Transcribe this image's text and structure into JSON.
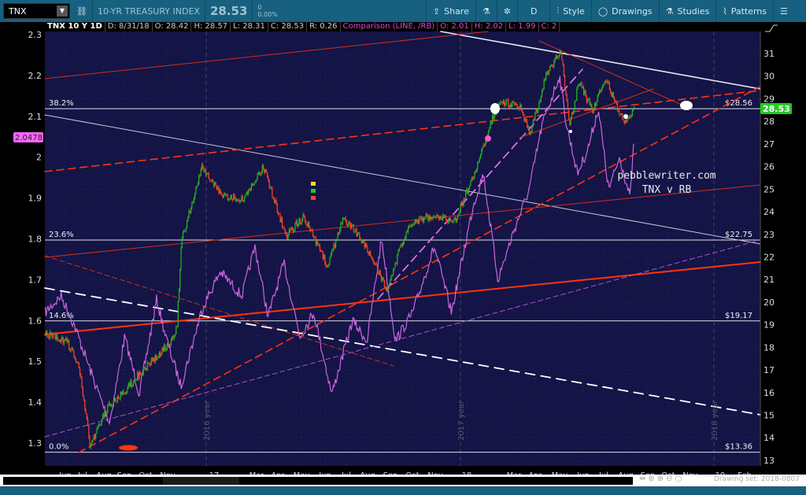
{
  "toolbar": {
    "symbol": "TNX",
    "description": "10-YR TREASURY INDEX",
    "last": "28.53",
    "change": "0",
    "change_pct": "0.00%",
    "share": "Share",
    "aggregation": "D",
    "style": "Style",
    "drawings": "Drawings",
    "studies": "Studies",
    "patterns": "Patterns",
    "icons": [
      "flask-icon",
      "gear-icon",
      "menu-icon"
    ]
  },
  "legend": {
    "title": "TNX 10 Y 1D",
    "date": "D: 8/31/18",
    "open": "O: 28.42",
    "high": "H: 28.57",
    "low": "L: 28.31",
    "close": "C: 28.53",
    "range": "R: 0.26",
    "comparison": "Comparison (LINE, /RB)",
    "c_open": "O: 2.01",
    "c_high": "H: 2.02",
    "c_low": "L: 1.99",
    "c_close": "C: 2"
  },
  "colors": {
    "background": "#141446",
    "up": "#22bb22",
    "down": "#ff4422",
    "comparison": "#cc66dd",
    "trend_red": "#ff3311",
    "price_badge": "#22cc22",
    "comparison_badge": "#ff66ff"
  },
  "chart_data": {
    "type": "candlestick+line",
    "xlim": [
      "2016-05-02",
      "2019-02-28"
    ],
    "x_ticks": [
      "Jun",
      "Jul",
      "Aug",
      "Sep",
      "Oct",
      "Nov",
      "17",
      "Mar",
      "Apr",
      "May",
      "Jun",
      "Jul",
      "Aug",
      "Sep",
      "Oct",
      "Nov",
      "18",
      "Mar",
      "Apr",
      "May",
      "Jun",
      "Jul",
      "Aug",
      "Sep",
      "Oct",
      "Nov",
      "19",
      "Feb"
    ],
    "year_labels": [
      "2016 year",
      "2017 year",
      "2018 year"
    ],
    "right_axis": {
      "ylim": [
        12.8,
        32
      ],
      "ticks": [
        "31",
        "30",
        "29",
        "28",
        "27",
        "26",
        "25",
        "24",
        "23",
        "22",
        "21",
        "20",
        "19",
        "18",
        "17",
        "16",
        "15",
        "14",
        "13"
      ],
      "last": "28.53"
    },
    "left_axis": {
      "ylim": [
        1.27,
        2.31
      ],
      "ticks": [
        "2.3",
        "2.2",
        "2.1",
        "2",
        "1.9",
        "1.8",
        "1.7",
        "1.6",
        "1.5",
        "1.4",
        "1.3"
      ],
      "last": "2.0478"
    },
    "tnx": [
      [
        "2016-05-02",
        18.6
      ],
      [
        "2016-06-01",
        18.3
      ],
      [
        "2016-06-20",
        17.2
      ],
      [
        "2016-07-06",
        13.6
      ],
      [
        "2016-08-01",
        15.4
      ],
      [
        "2016-08-20",
        15.9
      ],
      [
        "2016-09-15",
        16.8
      ],
      [
        "2016-10-10",
        17.6
      ],
      [
        "2016-10-31",
        18.3
      ],
      [
        "2016-11-08",
        18.8
      ],
      [
        "2016-11-15",
        22.7
      ],
      [
        "2016-12-15",
        26.0
      ],
      [
        "2017-01-10",
        24.8
      ],
      [
        "2017-02-10",
        24.5
      ],
      [
        "2017-03-13",
        26.0
      ],
      [
        "2017-04-15",
        22.9
      ],
      [
        "2017-05-10",
        23.8
      ],
      [
        "2017-06-14",
        21.6
      ],
      [
        "2017-07-07",
        23.8
      ],
      [
        "2017-08-10",
        22.4
      ],
      [
        "2017-09-07",
        20.6
      ],
      [
        "2017-10-10",
        23.5
      ],
      [
        "2017-11-10",
        23.8
      ],
      [
        "2017-12-15",
        23.6
      ],
      [
        "2018-01-10",
        25.5
      ],
      [
        "2018-02-05",
        28.0
      ],
      [
        "2018-02-20",
        28.9
      ],
      [
        "2018-03-20",
        28.6
      ],
      [
        "2018-04-02",
        27.4
      ],
      [
        "2018-04-25",
        30.0
      ],
      [
        "2018-05-17",
        31.1
      ],
      [
        "2018-05-29",
        27.8
      ],
      [
        "2018-06-12",
        29.7
      ],
      [
        "2018-07-02",
        28.5
      ],
      [
        "2018-07-20",
        29.9
      ],
      [
        "2018-08-15",
        28.0
      ],
      [
        "2018-08-31",
        28.53
      ]
    ],
    "rb": [
      [
        "2016-05-02",
        1.62
      ],
      [
        "2016-05-25",
        1.66
      ],
      [
        "2016-06-15",
        1.58
      ],
      [
        "2016-07-10",
        1.46
      ],
      [
        "2016-08-03",
        1.35
      ],
      [
        "2016-08-25",
        1.56
      ],
      [
        "2016-09-15",
        1.42
      ],
      [
        "2016-10-10",
        1.65
      ],
      [
        "2016-10-25",
        1.55
      ],
      [
        "2016-11-14",
        1.44
      ],
      [
        "2016-12-15",
        1.63
      ],
      [
        "2017-01-10",
        1.72
      ],
      [
        "2017-02-10",
        1.66
      ],
      [
        "2017-03-01",
        1.78
      ],
      [
        "2017-03-20",
        1.61
      ],
      [
        "2017-04-12",
        1.74
      ],
      [
        "2017-05-05",
        1.56
      ],
      [
        "2017-05-25",
        1.62
      ],
      [
        "2017-06-20",
        1.42
      ],
      [
        "2017-07-20",
        1.6
      ],
      [
        "2017-08-10",
        1.55
      ],
      [
        "2017-08-31",
        1.8
      ],
      [
        "2017-09-20",
        1.55
      ],
      [
        "2017-10-15",
        1.62
      ],
      [
        "2017-11-15",
        1.78
      ],
      [
        "2017-12-10",
        1.62
      ],
      [
        "2018-01-10",
        1.88
      ],
      [
        "2018-01-25",
        1.96
      ],
      [
        "2018-02-15",
        1.7
      ],
      [
        "2018-03-10",
        1.82
      ],
      [
        "2018-04-01",
        1.92
      ],
      [
        "2018-04-20",
        2.08
      ],
      [
        "2018-05-15",
        2.2
      ],
      [
        "2018-05-25",
        2.08
      ],
      [
        "2018-06-10",
        1.96
      ],
      [
        "2018-06-25",
        2.02
      ],
      [
        "2018-07-10",
        2.12
      ],
      [
        "2018-07-25",
        1.92
      ],
      [
        "2018-08-10",
        2.0
      ],
      [
        "2018-08-25",
        1.9
      ],
      [
        "2018-08-31",
        2.05
      ]
    ],
    "fib_levels": [
      {
        "pct": "38.2%",
        "price": "$28.56",
        "value": 28.56
      },
      {
        "pct": "23.6%",
        "price": "$22.75",
        "value": 22.75
      },
      {
        "pct": "14.6%",
        "price": "$19.17",
        "value": 19.17
      },
      {
        "pct": "0.0%",
        "price": "$13.36",
        "value": 13.36
      }
    ],
    "annotation": [
      "pebblewriter.com",
      "TNX v RB"
    ]
  },
  "footer": {
    "drawing_set": "Drawing set: 2018-0807"
  }
}
